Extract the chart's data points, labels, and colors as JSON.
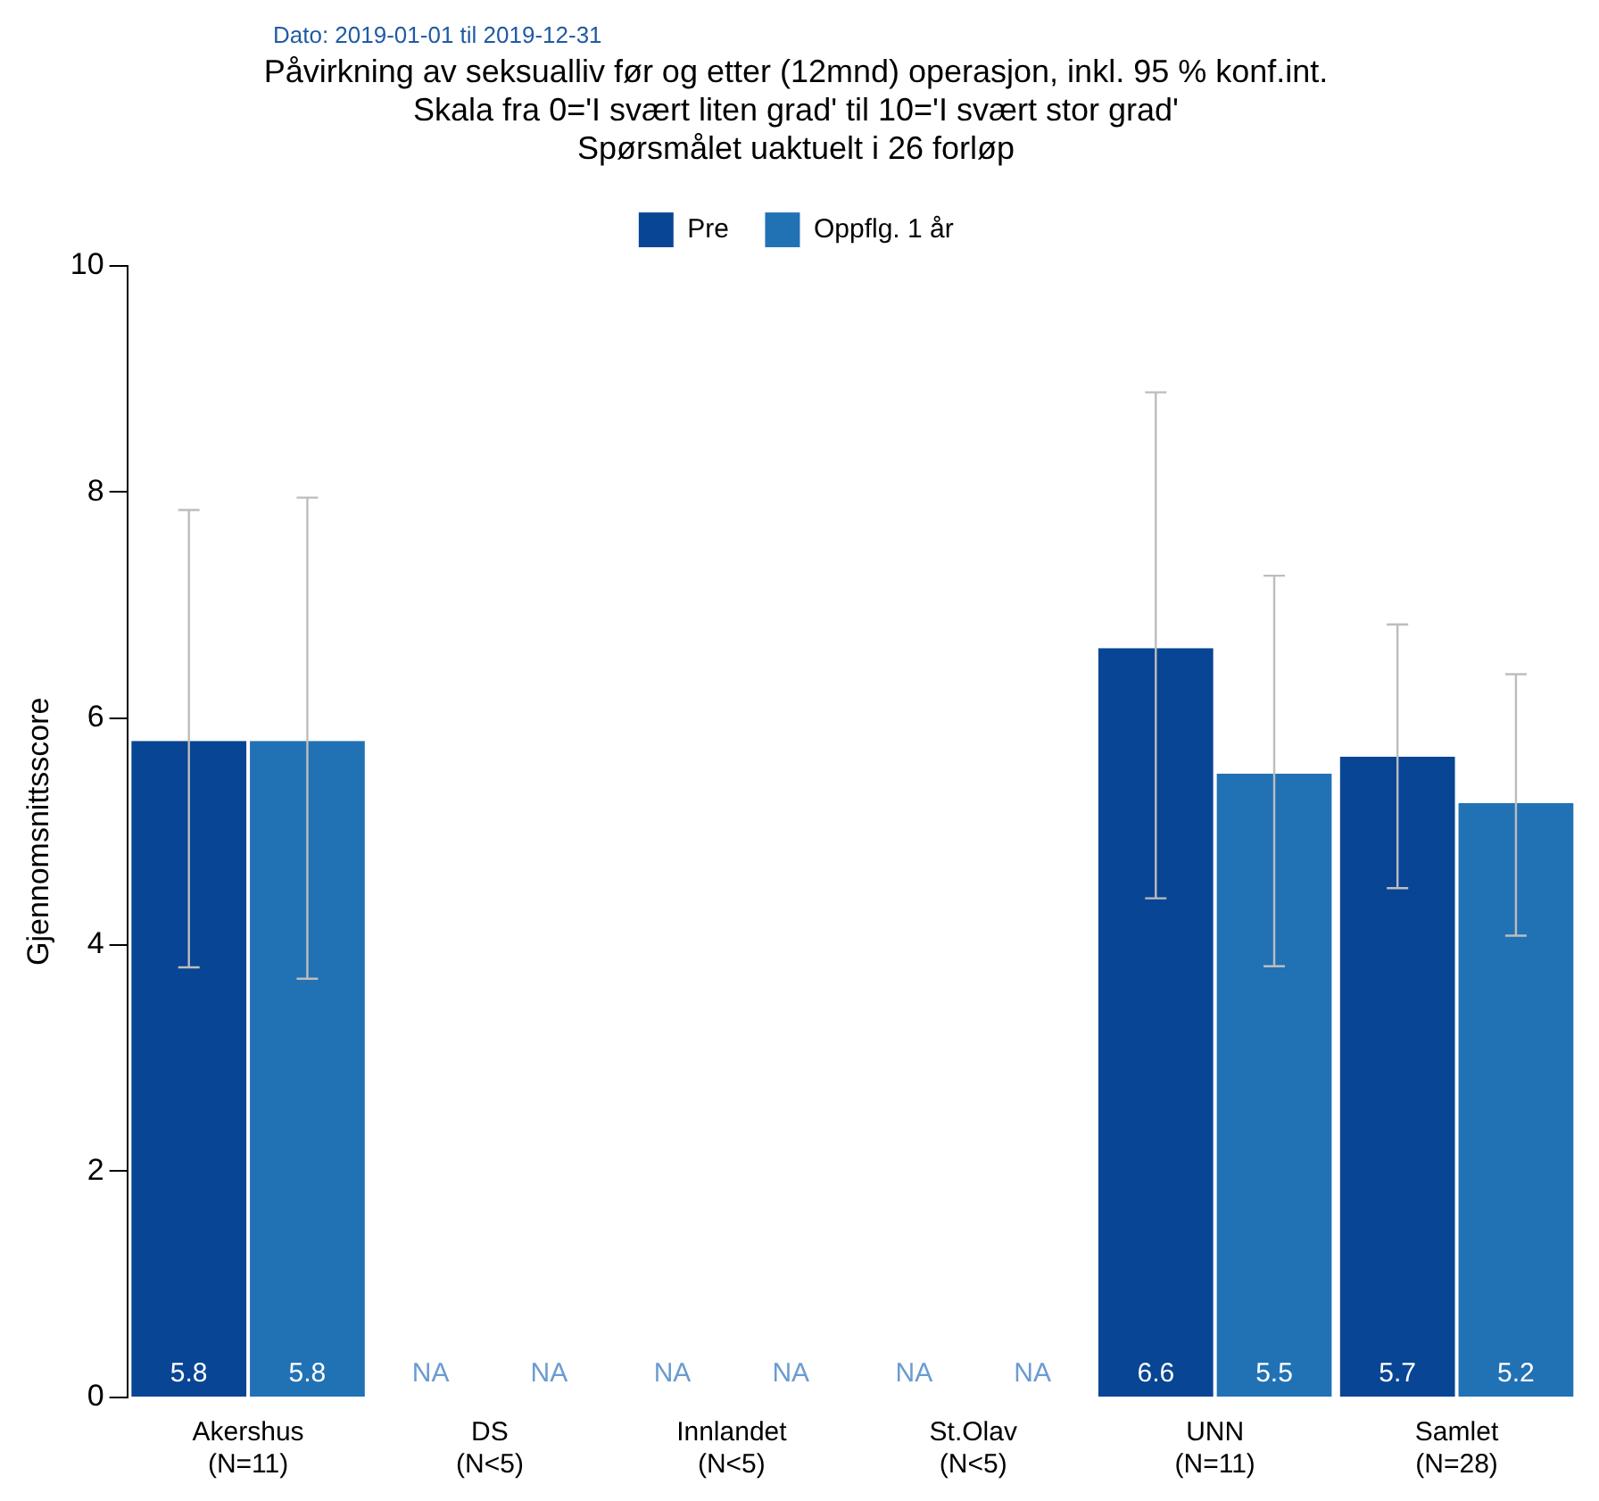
{
  "chart_data": {
    "type": "bar",
    "title": "Påvirkning av seksualliv før og etter (12mnd) operasjon, inkl. 95 % konf.int.",
    "subtitle": "Skala fra 0='I svært liten grad' til 10='I svært stor grad'\nSpørsmålet uaktuelt i 26 forløp",
    "ylabel": "Gjennomsnittsscore",
    "annotations": [
      "Dato: 2019-01-01 til 2019-12-31"
    ],
    "categories": [
      "Akershus\n(N=11)",
      "DS\n(N<5)",
      "Innlandet\n(N<5)",
      "St.Olav\n(N<5)",
      "UNN\n(N=11)",
      "Samlet\n(N=28)"
    ],
    "series": [
      {
        "name": "Pre",
        "color": "#084594",
        "values": [
          5.8,
          null,
          null,
          null,
          6.62,
          5.66
        ],
        "value_labels": [
          "5.8",
          "NA",
          "NA",
          "NA",
          "6.6",
          "5.7"
        ],
        "errors": [
          [
            3.8,
            7.84
          ],
          null,
          null,
          null,
          [
            4.41,
            8.88
          ],
          [
            4.5,
            6.83
          ]
        ]
      },
      {
        "name": "Oppflg. 1 år",
        "color": "#2171b5",
        "values": [
          5.8,
          null,
          null,
          null,
          5.51,
          5.25
        ],
        "value_labels": [
          "5.8",
          "NA",
          "NA",
          "NA",
          "5.5",
          "5.2"
        ],
        "errors": [
          [
            3.7,
            7.95
          ],
          null,
          null,
          null,
          [
            3.81,
            7.26
          ],
          [
            4.08,
            6.39
          ]
        ]
      }
    ],
    "ylim": [
      0,
      10
    ],
    "yticks": [
      0,
      2,
      4,
      6,
      8,
      10
    ],
    "grid": false,
    "legend": "top"
  }
}
